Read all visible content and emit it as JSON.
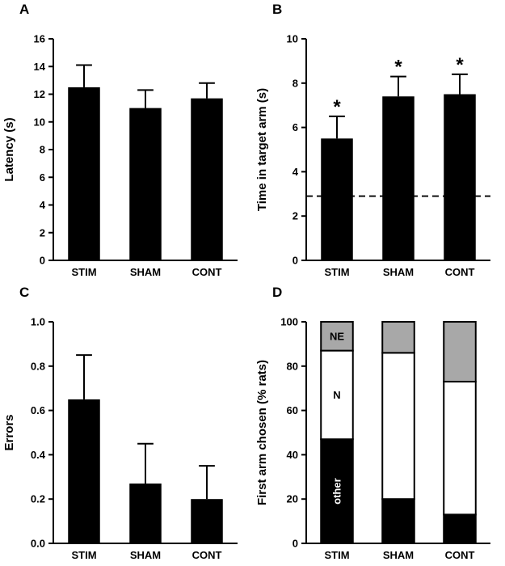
{
  "figure": {
    "background": "#ffffff",
    "bar_color": "#000000",
    "axis_color": "#000000"
  },
  "chart_data": [
    {
      "panel_label": "A",
      "type": "bar",
      "title": "",
      "categories": [
        "STIM",
        "SHAM",
        "CONT"
      ],
      "values": [
        12.5,
        11.0,
        11.7
      ],
      "errors": [
        1.6,
        1.3,
        1.1
      ],
      "xlabel": "",
      "ylabel": "Latency (s)",
      "ylim": [
        0,
        16
      ],
      "ytick_step": 2,
      "ytick_decimals": 0,
      "grid": false,
      "bar_color": "#000000"
    },
    {
      "panel_label": "B",
      "type": "bar",
      "title": "",
      "categories": [
        "STIM",
        "SHAM",
        "CONT"
      ],
      "values": [
        5.5,
        7.4,
        7.5
      ],
      "errors": [
        1.0,
        0.9,
        0.9
      ],
      "annotations": [
        "*",
        "*",
        "*"
      ],
      "reference_line": 2.9,
      "xlabel": "",
      "ylabel": "Time in target arm (s)",
      "ylim": [
        0,
        10
      ],
      "ytick_step": 2,
      "ytick_decimals": 0,
      "grid": false,
      "bar_color": "#000000"
    },
    {
      "panel_label": "C",
      "type": "bar",
      "title": "",
      "categories": [
        "STIM",
        "SHAM",
        "CONT"
      ],
      "values": [
        0.65,
        0.27,
        0.2
      ],
      "errors": [
        0.2,
        0.18,
        0.15
      ],
      "xlabel": "",
      "ylabel": "Errors",
      "ylim": [
        0,
        1.0
      ],
      "ytick_step": 0.2,
      "ytick_decimals": 1,
      "grid": false,
      "bar_color": "#000000"
    },
    {
      "panel_label": "D",
      "type": "stacked_bar",
      "title": "",
      "categories": [
        "STIM",
        "SHAM",
        "CONT"
      ],
      "series": [
        {
          "name": "other",
          "color": "#000000",
          "values": [
            47,
            20,
            13
          ]
        },
        {
          "name": "N",
          "color": "#ffffff",
          "values": [
            40,
            66,
            60
          ]
        },
        {
          "name": "NE",
          "color": "#a8a8a8",
          "values": [
            13,
            14,
            27
          ]
        }
      ],
      "inbar_labels": [
        {
          "category": 0,
          "series": 0,
          "text": "other",
          "color": "#ffffff",
          "rotate": true
        },
        {
          "category": 0,
          "series": 1,
          "text": "N",
          "color": "#000000",
          "rotate": false
        },
        {
          "category": 0,
          "series": 2,
          "text": "NE",
          "color": "#000000",
          "rotate": false
        }
      ],
      "xlabel": "",
      "ylabel": "First arm chosen (% rats)",
      "ylim": [
        0,
        100
      ],
      "ytick_step": 20,
      "ytick_decimals": 0,
      "grid": false
    }
  ]
}
